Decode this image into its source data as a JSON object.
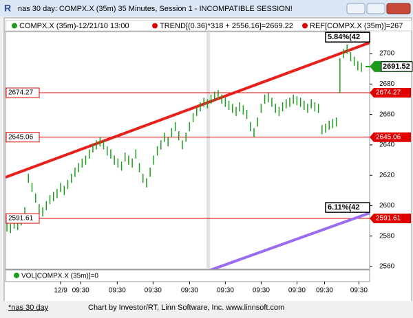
{
  "window": {
    "title": "nas 30 day: COMPX.X (35m) 35 Minutes, Session 1 - INCOMPATIBLE SESSION!"
  },
  "chart_data": {
    "type": "ohlc",
    "legend": [
      "COMPX.X (35m)-12/21/10 13:00",
      "TREND[(0.36)*318 + 2556.16]=2669.22",
      "REF[COMPX.X (35m)]=267"
    ],
    "color": "#1e9a1e",
    "high": [
      2589,
      2588,
      2591,
      2590,
      2593,
      2599,
      2621,
      2615,
      2608,
      2601,
      2599,
      2603,
      2607,
      2609,
      2611,
      2615,
      2613,
      2617,
      2621,
      2625,
      2628,
      2631,
      2633,
      2637,
      2641,
      2643,
      2645,
      2643,
      2639,
      2637,
      2633,
      2631,
      2629,
      2635,
      2633,
      2631,
      2637,
      2628,
      2621,
      2618,
      2625,
      2633,
      2639,
      2643,
      2648,
      2645,
      2651,
      2655,
      2649,
      2643,
      2648,
      2655,
      2661,
      2665,
      2668,
      2671,
      2670,
      2673,
      2675,
      2676,
      2673,
      2671,
      2669,
      2667,
      2665,
      2668,
      2666,
      2663,
      2655,
      2651,
      2658,
      2667,
      2673,
      2674,
      2671,
      2667,
      2665,
      2668,
      2670,
      2671,
      2673,
      2672,
      2671,
      2669,
      2667,
      2670,
      2668,
      2667,
      2653,
      2654,
      2656,
      2657,
      2658,
      2697,
      2703,
      2706,
      2701,
      2698,
      2695,
      2694
    ],
    "low": [
      2583,
      2582,
      2585,
      2584,
      2587,
      2593,
      2615,
      2609,
      2602,
      2595,
      2593,
      2597,
      2601,
      2603,
      2605,
      2609,
      2607,
      2611,
      2615,
      2619,
      2622,
      2625,
      2627,
      2631,
      2635,
      2637,
      2639,
      2637,
      2633,
      2631,
      2627,
      2625,
      2623,
      2629,
      2627,
      2625,
      2631,
      2622,
      2615,
      2612,
      2619,
      2627,
      2633,
      2637,
      2642,
      2639,
      2645,
      2649,
      2643,
      2637,
      2642,
      2649,
      2655,
      2659,
      2662,
      2665,
      2664,
      2667,
      2669,
      2670,
      2667,
      2665,
      2663,
      2661,
      2659,
      2662,
      2660,
      2657,
      2649,
      2645,
      2652,
      2661,
      2667,
      2668,
      2665,
      2661,
      2659,
      2662,
      2664,
      2665,
      2667,
      2666,
      2665,
      2663,
      2661,
      2664,
      2662,
      2661,
      2647,
      2648,
      2650,
      2651,
      2652,
      2674,
      2697,
      2700,
      2695,
      2692,
      2689,
      2688
    ],
    "xlim": [
      -0.4,
      101.3
    ],
    "ylim": [
      2558.2,
      2714.5
    ],
    "yticks": [
      2560,
      2580,
      2600,
      2620,
      2640,
      2660,
      2680,
      2700
    ],
    "xticks": [
      {
        "value": 15,
        "label": "12/9"
      },
      {
        "value": 20.6,
        "label": "09:30"
      },
      {
        "value": 30.8,
        "label": "09:30"
      },
      {
        "value": 40.8,
        "label": "09:30"
      },
      {
        "value": 51,
        "label": "09:30"
      },
      {
        "value": 61,
        "label": "09:30"
      },
      {
        "value": 71,
        "label": "09:30"
      },
      {
        "value": 81,
        "label": "09:30"
      },
      {
        "value": 88.7,
        "label": "09:30"
      },
      {
        "value": 98.3,
        "label": "09:30"
      }
    ],
    "reference_lines": [
      {
        "value": 2674.27,
        "color": "#e00000"
      },
      {
        "value": 2645.06,
        "color": "#e00000"
      },
      {
        "value": 2591.61,
        "color": "#e00000"
      }
    ],
    "last_price": 2691.52,
    "last_price_color": "#1e9a1e",
    "trend_lines": [
      {
        "x": [
          -0.4,
          101.3
        ],
        "y": [
          2618.7,
          2707.2
        ],
        "color": "#e8201c",
        "label": "5.84%(42"
      },
      {
        "x": [
          55.8,
          101.3
        ],
        "y": [
          2556.8,
          2595.2
        ],
        "color": "#9b6cf0",
        "label": "6.11%(42"
      }
    ],
    "volume_label": "VOL[COMPX.X (35m)]=0"
  },
  "status": {
    "tab": "*nas 30 day",
    "credit": "Chart by Investor/RT, Linn Software, Inc. www.linnsoft.com"
  }
}
